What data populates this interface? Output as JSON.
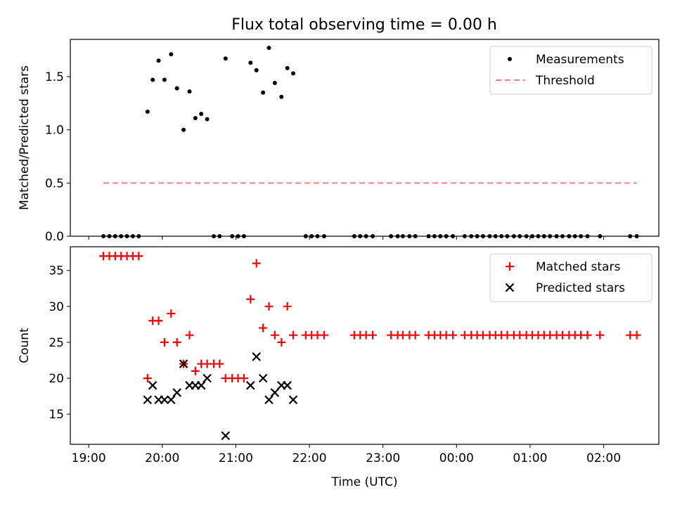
{
  "title": "Flux total observing time = 0.00 h",
  "chart_data": [
    {
      "type": "scatter",
      "ylabel": "Matched/Predicted stars",
      "xlim": [
        -0.25,
        7.75
      ],
      "ylim": [
        0,
        1.85
      ],
      "yticks": [
        0.0,
        0.5,
        1.0,
        1.5
      ],
      "ytick_labels": [
        "0.0",
        "0.5",
        "1.0",
        "1.5"
      ],
      "legend_position": "top-right",
      "series": [
        {
          "name": "Measurements",
          "marker": "dot",
          "color": "#000000",
          "x": [
            0.2,
            0.28,
            0.36,
            0.44,
            0.52,
            0.6,
            0.68,
            0.8,
            0.87,
            0.95,
            1.03,
            1.12,
            1.2,
            1.29,
            1.37,
            1.45,
            1.53,
            1.61,
            1.7,
            1.78,
            1.86,
            1.95,
            2.03,
            2.11,
            2.2,
            2.28,
            2.37,
            2.45,
            2.53,
            2.62,
            2.7,
            2.78,
            2.95,
            3.03,
            3.11,
            3.2,
            3.61,
            3.69,
            3.77,
            3.86,
            4.11,
            4.2,
            4.27,
            4.36,
            4.44,
            4.62,
            4.7,
            4.78,
            4.86,
            4.95,
            5.11,
            5.2,
            5.28,
            5.36,
            5.45,
            5.53,
            5.61,
            5.69,
            5.78,
            5.86,
            5.95,
            6.03,
            6.11,
            6.19,
            6.27,
            6.36,
            6.44,
            6.53,
            6.61,
            6.69,
            6.78,
            6.95,
            7.36,
            7.45
          ],
          "y": [
            0,
            0,
            0,
            0,
            0,
            0,
            0,
            1.17,
            1.47,
            1.65,
            1.47,
            1.71,
            1.39,
            1.0,
            1.36,
            1.11,
            1.15,
            1.1,
            0,
            0,
            1.67,
            0,
            0,
            0,
            1.63,
            1.56,
            1.35,
            1.77,
            1.44,
            1.31,
            1.58,
            1.53,
            0,
            0,
            0,
            0,
            0,
            0,
            0,
            0,
            0,
            0,
            0,
            0,
            0,
            0,
            0,
            0,
            0,
            0,
            0,
            0,
            0,
            0,
            0,
            0,
            0,
            0,
            0,
            0,
            0,
            0,
            0,
            0,
            0,
            0,
            0,
            0,
            0,
            0,
            0,
            0,
            0,
            0
          ]
        },
        {
          "name": "Threshold",
          "line": "dashed",
          "color": "#ff7f7f",
          "x": [
            0.2,
            7.45
          ],
          "y": [
            0.5,
            0.5
          ]
        }
      ]
    },
    {
      "type": "scatter",
      "xlabel": "Time (UTC)",
      "ylabel": "Count",
      "xlim": [
        -0.25,
        7.75
      ],
      "ylim": [
        10.8,
        38.3
      ],
      "xticks": [
        0,
        1,
        2,
        3,
        4,
        5,
        6,
        7
      ],
      "xtick_labels": [
        "19:00",
        "20:00",
        "21:00",
        "22:00",
        "23:00",
        "00:00",
        "01:00",
        "02:00"
      ],
      "yticks": [
        15,
        20,
        25,
        30,
        35
      ],
      "ytick_labels": [
        "15",
        "20",
        "25",
        "30",
        "35"
      ],
      "legend_position": "top-right",
      "series": [
        {
          "name": "Matched stars",
          "marker": "plus",
          "color": "#ff0000",
          "x": [
            0.2,
            0.28,
            0.36,
            0.44,
            0.52,
            0.6,
            0.68,
            0.8,
            0.87,
            0.95,
            1.03,
            1.12,
            1.2,
            1.29,
            1.37,
            1.45,
            1.53,
            1.61,
            1.7,
            1.78,
            1.86,
            1.95,
            2.03,
            2.11,
            2.2,
            2.28,
            2.37,
            2.45,
            2.53,
            2.62,
            2.7,
            2.78,
            2.95,
            3.03,
            3.11,
            3.2,
            3.61,
            3.69,
            3.77,
            3.86,
            4.11,
            4.2,
            4.27,
            4.36,
            4.44,
            4.62,
            4.7,
            4.78,
            4.86,
            4.95,
            5.11,
            5.2,
            5.28,
            5.36,
            5.45,
            5.53,
            5.61,
            5.69,
            5.78,
            5.86,
            5.95,
            6.03,
            6.11,
            6.19,
            6.27,
            6.36,
            6.44,
            6.53,
            6.61,
            6.69,
            6.78,
            6.95,
            7.36,
            7.45
          ],
          "y": [
            37,
            37,
            37,
            37,
            37,
            37,
            37,
            20,
            28,
            28,
            25,
            29,
            25,
            22,
            26,
            21,
            22,
            22,
            22,
            22,
            20,
            20,
            20,
            20,
            31,
            36,
            27,
            30,
            26,
            25,
            30,
            26,
            26,
            26,
            26,
            26,
            26,
            26,
            26,
            26,
            26,
            26,
            26,
            26,
            26,
            26,
            26,
            26,
            26,
            26,
            26,
            26,
            26,
            26,
            26,
            26,
            26,
            26,
            26,
            26,
            26,
            26,
            26,
            26,
            26,
            26,
            26,
            26,
            26,
            26,
            26,
            26,
            26,
            26
          ]
        },
        {
          "name": "Predicted stars",
          "marker": "x",
          "color": "#000000",
          "x": [
            0.8,
            0.87,
            0.95,
            1.03,
            1.12,
            1.2,
            1.29,
            1.37,
            1.45,
            1.53,
            1.61,
            1.86,
            2.2,
            2.28,
            2.37,
            2.45,
            2.53,
            2.62,
            2.7,
            2.78
          ],
          "y": [
            17,
            19,
            17,
            17,
            17,
            18,
            22,
            19,
            19,
            19,
            20,
            12,
            19,
            23,
            20,
            17,
            18,
            19,
            19,
            17
          ]
        }
      ]
    }
  ]
}
